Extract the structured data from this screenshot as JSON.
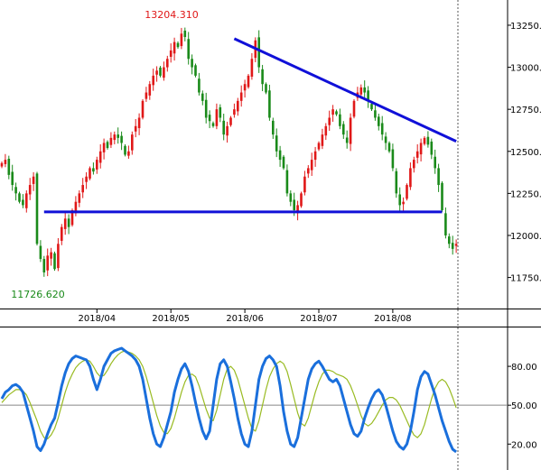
{
  "chart_data": [
    {
      "type": "candlestick",
      "title": "",
      "ylim": [
        11560,
        13400
      ],
      "y_ticks": [
        11750,
        12000,
        12250,
        12500,
        12750,
        13000,
        13250
      ],
      "y_tick_labels": [
        "11750.",
        "12000.",
        "12250.",
        "12500.",
        "12750.",
        "13000.",
        "13250."
      ],
      "x_tick_labels": [
        "2018/04",
        "2018/05",
        "2018/06",
        "2018/07",
        "2018/08"
      ],
      "x_tick_days": [
        27,
        48,
        69,
        90,
        111
      ],
      "days_shown": 130,
      "high_label": "13204.310",
      "low_label": "11726.620",
      "up_color": "#e01818",
      "down_color": "#1a8a1a",
      "close_series": [
        12430,
        12450,
        12360,
        12300,
        12250,
        12200,
        12180,
        12250,
        12300,
        12350,
        11950,
        11860,
        11780,
        11880,
        11900,
        11800,
        11950,
        12050,
        12100,
        12050,
        12150,
        12200,
        12250,
        12300,
        12350,
        12400,
        12380,
        12450,
        12500,
        12550,
        12520,
        12580,
        12600,
        12580,
        12550,
        12480,
        12500,
        12600,
        12650,
        12700,
        12800,
        12850,
        12900,
        12950,
        12980,
        12950,
        13000,
        13050,
        13100,
        13150,
        13120,
        13200,
        13180,
        13050,
        13000,
        12950,
        12850,
        12800,
        12700,
        12680,
        12650,
        12750,
        12700,
        12600,
        12650,
        12700,
        12750,
        12800,
        12850,
        12900,
        12950,
        13050,
        13160,
        13000,
        12900,
        12850,
        12700,
        12600,
        12500,
        12450,
        12400,
        12250,
        12200,
        12150,
        12180,
        12250,
        12350,
        12400,
        12450,
        12500,
        12550,
        12600,
        12650,
        12700,
        12750,
        12720,
        12650,
        12600,
        12550,
        12700,
        12800,
        12850,
        12880,
        12850,
        12800,
        12750,
        12700,
        12650,
        12600,
        12550,
        12500,
        12400,
        12250,
        12180,
        12200,
        12300,
        12400,
        12450,
        12500,
        12550,
        12580,
        12540,
        12480,
        12400,
        12300,
        12150,
        12000,
        11950,
        11920,
        11950
      ],
      "trendlines": [
        {
          "name": "resistance",
          "from": {
            "day": 66,
            "value": 13170
          },
          "to": {
            "day": 129,
            "value": 12560
          },
          "color": "#1010d8"
        },
        {
          "name": "support",
          "from": {
            "day": 12,
            "value": 12140
          },
          "to": {
            "day": 125,
            "value": 12140
          },
          "color": "#1010d8"
        }
      ]
    },
    {
      "type": "line",
      "title": "",
      "ylim": [
        0,
        110
      ],
      "y_ticks": [
        20,
        50,
        80
      ],
      "y_tick_labels": [
        "20.00",
        "50.00",
        "80.00"
      ],
      "series": [
        {
          "key": "k",
          "color": "#1a6fdc",
          "values": [
            55,
            60,
            62,
            65,
            66,
            64,
            60,
            50,
            40,
            30,
            18,
            15,
            20,
            28,
            35,
            40,
            52,
            65,
            75,
            82,
            86,
            88,
            87,
            86,
            85,
            80,
            70,
            62,
            70,
            80,
            85,
            90,
            92,
            93,
            94,
            92,
            90,
            88,
            85,
            80,
            70,
            55,
            40,
            28,
            20,
            18,
            25,
            35,
            45,
            60,
            70,
            78,
            82,
            76,
            65,
            52,
            40,
            30,
            24,
            30,
            50,
            70,
            82,
            85,
            80,
            68,
            55,
            40,
            28,
            20,
            18,
            30,
            50,
            70,
            80,
            86,
            88,
            85,
            80,
            65,
            45,
            30,
            20,
            18,
            25,
            40,
            55,
            70,
            78,
            82,
            84,
            80,
            75,
            70,
            68,
            70,
            65,
            55,
            45,
            35,
            28,
            26,
            30,
            40,
            48,
            55,
            60,
            62,
            58,
            50,
            40,
            30,
            22,
            18,
            16,
            20,
            30,
            45,
            62,
            72,
            76,
            74,
            66,
            58,
            48,
            38,
            30,
            22,
            16,
            14
          ]
        },
        {
          "key": "d",
          "color": "#99bb22",
          "values": [
            52,
            55,
            58,
            60,
            62,
            62,
            61,
            58,
            52,
            45,
            38,
            30,
            25,
            24,
            27,
            32,
            40,
            50,
            60,
            68,
            74,
            79,
            82,
            84,
            85,
            84,
            80,
            75,
            72,
            73,
            77,
            82,
            86,
            89,
            91,
            92,
            91,
            90,
            88,
            85,
            80,
            72,
            62,
            52,
            42,
            34,
            29,
            28,
            32,
            40,
            50,
            60,
            68,
            73,
            74,
            72,
            65,
            56,
            47,
            40,
            38,
            46,
            58,
            70,
            78,
            80,
            77,
            70,
            60,
            50,
            40,
            32,
            30,
            38,
            50,
            62,
            72,
            78,
            82,
            84,
            82,
            76,
            66,
            55,
            44,
            36,
            34,
            40,
            50,
            60,
            68,
            74,
            77,
            77,
            76,
            74,
            73,
            72,
            70,
            65,
            58,
            50,
            42,
            36,
            34,
            36,
            40,
            45,
            50,
            54,
            56,
            56,
            54,
            50,
            44,
            38,
            32,
            27,
            25,
            28,
            35,
            45,
            55,
            63,
            68,
            70,
            68,
            63,
            56,
            48
          ]
        }
      ]
    }
  ]
}
